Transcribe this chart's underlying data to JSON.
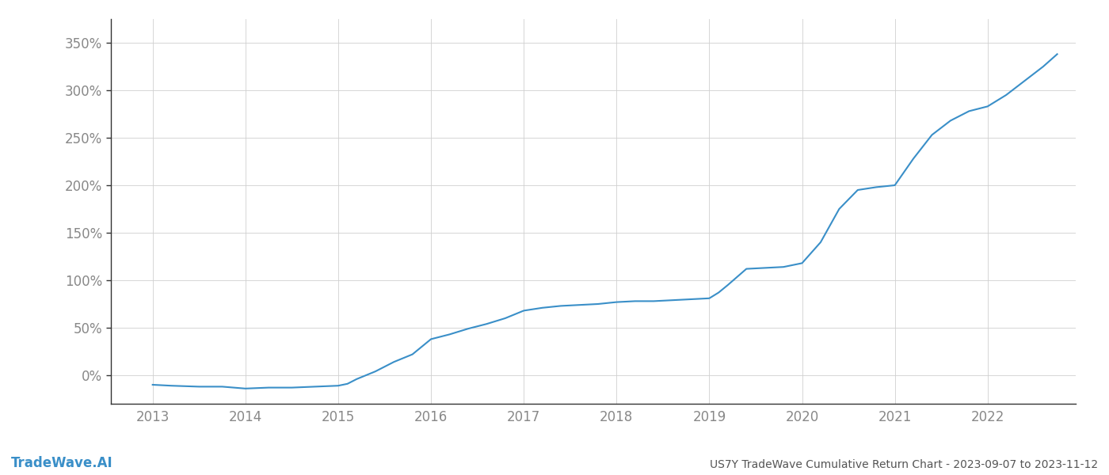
{
  "title": "US7Y TradeWave Cumulative Return Chart - 2023-09-07 to 2023-11-12",
  "watermark": "TradeWave.AI",
  "line_color": "#3a8fc8",
  "background_color": "#ffffff",
  "grid_color": "#d0d0d0",
  "x_years": [
    2013,
    2014,
    2015,
    2016,
    2017,
    2018,
    2019,
    2020,
    2021,
    2022
  ],
  "data_x": [
    2013.0,
    2013.2,
    2013.5,
    2013.75,
    2014.0,
    2014.25,
    2014.5,
    2014.75,
    2015.0,
    2015.1,
    2015.2,
    2015.4,
    2015.6,
    2015.8,
    2016.0,
    2016.2,
    2016.4,
    2016.6,
    2016.8,
    2017.0,
    2017.2,
    2017.4,
    2017.6,
    2017.8,
    2018.0,
    2018.2,
    2018.4,
    2018.6,
    2018.8,
    2019.0,
    2019.1,
    2019.2,
    2019.4,
    2019.6,
    2019.8,
    2020.0,
    2020.2,
    2020.4,
    2020.6,
    2020.8,
    2021.0,
    2021.2,
    2021.4,
    2021.6,
    2021.8,
    2022.0,
    2022.2,
    2022.4,
    2022.6,
    2022.75
  ],
  "data_y": [
    -10,
    -11,
    -12,
    -12,
    -14,
    -13,
    -13,
    -12,
    -11,
    -9,
    -4,
    4,
    14,
    22,
    38,
    43,
    49,
    54,
    60,
    68,
    71,
    73,
    74,
    75,
    77,
    78,
    78,
    79,
    80,
    81,
    87,
    95,
    112,
    113,
    114,
    118,
    140,
    175,
    195,
    198,
    200,
    228,
    253,
    268,
    278,
    283,
    295,
    310,
    325,
    338
  ],
  "ylim": [
    -30,
    375
  ],
  "xlim": [
    2012.55,
    2022.95
  ],
  "yticks": [
    0,
    50,
    100,
    150,
    200,
    250,
    300,
    350
  ],
  "tick_label_fontsize": 12,
  "title_fontsize": 10,
  "watermark_fontsize": 12,
  "line_width": 1.5,
  "left_spine_color": "#333333",
  "bottom_spine_color": "#333333",
  "tick_color": "#888888"
}
